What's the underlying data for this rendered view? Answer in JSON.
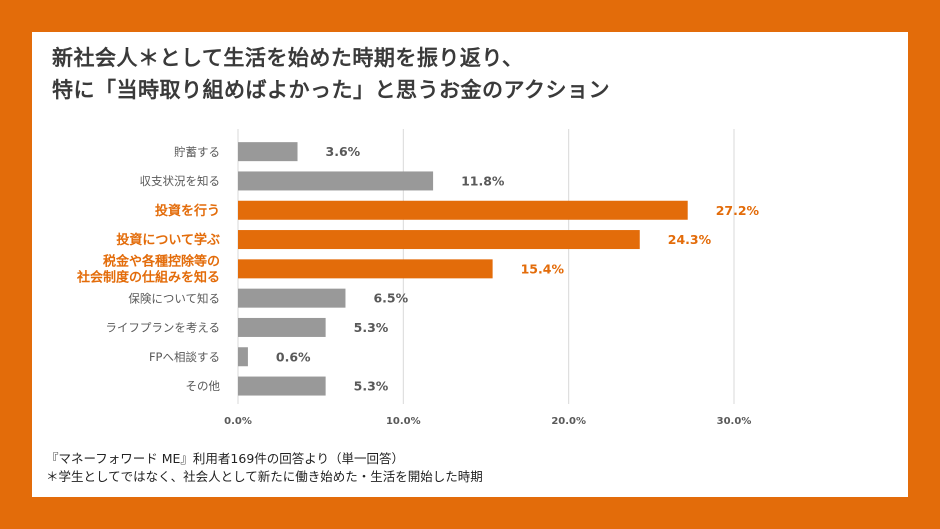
{
  "title": {
    "line1": "新社会人＊として生活を始めた時期を振り返り、",
    "line2": "特に「当時取り組めばよかった」と思うお金のアクション"
  },
  "colors": {
    "frame": "#e36c0a",
    "highlight": "#e36c0a",
    "normal_bar": "#999999",
    "normal_text": "#595959"
  },
  "chart_data": {
    "type": "bar",
    "orientation": "horizontal",
    "categories": [
      [
        "貯蓄する"
      ],
      [
        "収支状況を知る"
      ],
      [
        "投資を行う"
      ],
      [
        "投資について学ぶ"
      ],
      [
        "税金や各種控除等の",
        "社会制度の仕組みを知る"
      ],
      [
        "保険について知る"
      ],
      [
        "ライフプランを考える"
      ],
      [
        "FPへ相談する"
      ],
      [
        "その他"
      ]
    ],
    "values": [
      3.6,
      11.8,
      27.2,
      24.3,
      15.4,
      6.5,
      5.3,
      0.6,
      5.3
    ],
    "value_labels": [
      "3.6%",
      "11.8%",
      "27.2%",
      "24.3%",
      "15.4%",
      "6.5%",
      "5.3%",
      "0.6%",
      "5.3%"
    ],
    "highlighted": [
      false,
      false,
      true,
      true,
      true,
      false,
      false,
      false,
      false
    ],
    "xlim": [
      0,
      30
    ],
    "xticks": [
      0,
      10,
      20,
      30
    ],
    "xtick_labels": [
      "0.0%",
      "10.0%",
      "20.0%",
      "30.0%"
    ],
    "grid": true,
    "legend": "none"
  },
  "footnote": {
    "line1": "『マネーフォワード ME』利用者169件の回答より（単一回答）",
    "line2": "＊学生としてではなく、社会人として新たに働き始めた・生活を開始した時期"
  }
}
